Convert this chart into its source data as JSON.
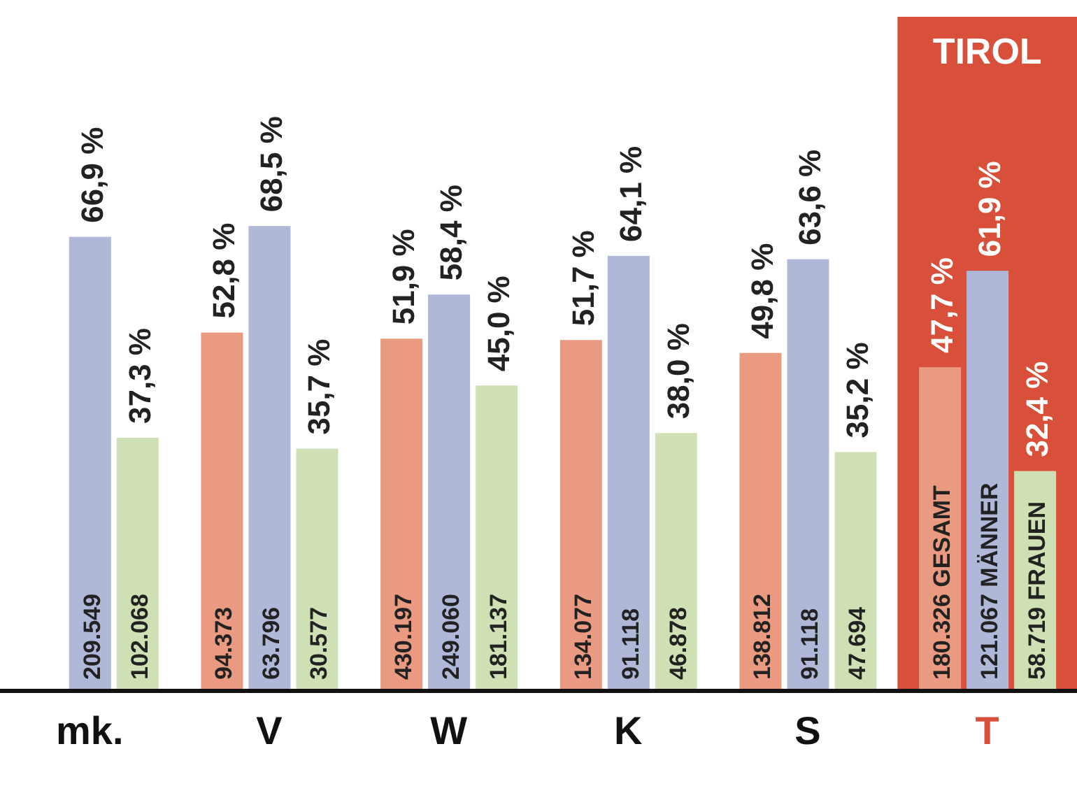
{
  "chart_data": {
    "type": "bar",
    "categories": [
      "mk.",
      "V",
      "W",
      "K",
      "S",
      "T"
    ],
    "series": [
      {
        "color": "#e99a80",
        "values": [
          null,
          52.8,
          51.9,
          51.7,
          49.8,
          47.7
        ],
        "value_labels": [
          null,
          "52,8 %",
          "51,9 %",
          "51,7 %",
          "49,8 %",
          "47,7 %"
        ]
      },
      {
        "color": "#b0b8d8",
        "values": [
          66.9,
          68.5,
          58.4,
          64.1,
          63.6,
          61.9
        ],
        "value_labels": [
          "66,9 %",
          "68,5 %",
          "58,4 %",
          "64,1 %",
          "63,6 %",
          "61,9 %"
        ]
      },
      {
        "color": "#cfe0b4",
        "values": [
          37.3,
          35.7,
          45.0,
          38.0,
          35.2,
          32.4
        ],
        "value_labels": [
          "37,3 %",
          "35,7 %",
          "45,0 %",
          "38,0 %",
          "35,2 %",
          "32,4 %"
        ]
      }
    ],
    "annotations": [
      "209.549",
      "102.068",
      "94.373",
      "63.796",
      "30.577",
      "430.197",
      "249.060",
      "181.137",
      "134.077",
      "91.118",
      "46.878",
      "138.812",
      "91.118",
      "47.694",
      "180.326 GESAMT",
      "121.067 MÄNNER",
      "58.719 FRAUEN"
    ],
    "bands": [
      {
        "axis": "x",
        "from": "T",
        "to": "T",
        "label": "TIROL",
        "color": "#d9503a"
      }
    ],
    "grid": false,
    "legend": false
  }
}
